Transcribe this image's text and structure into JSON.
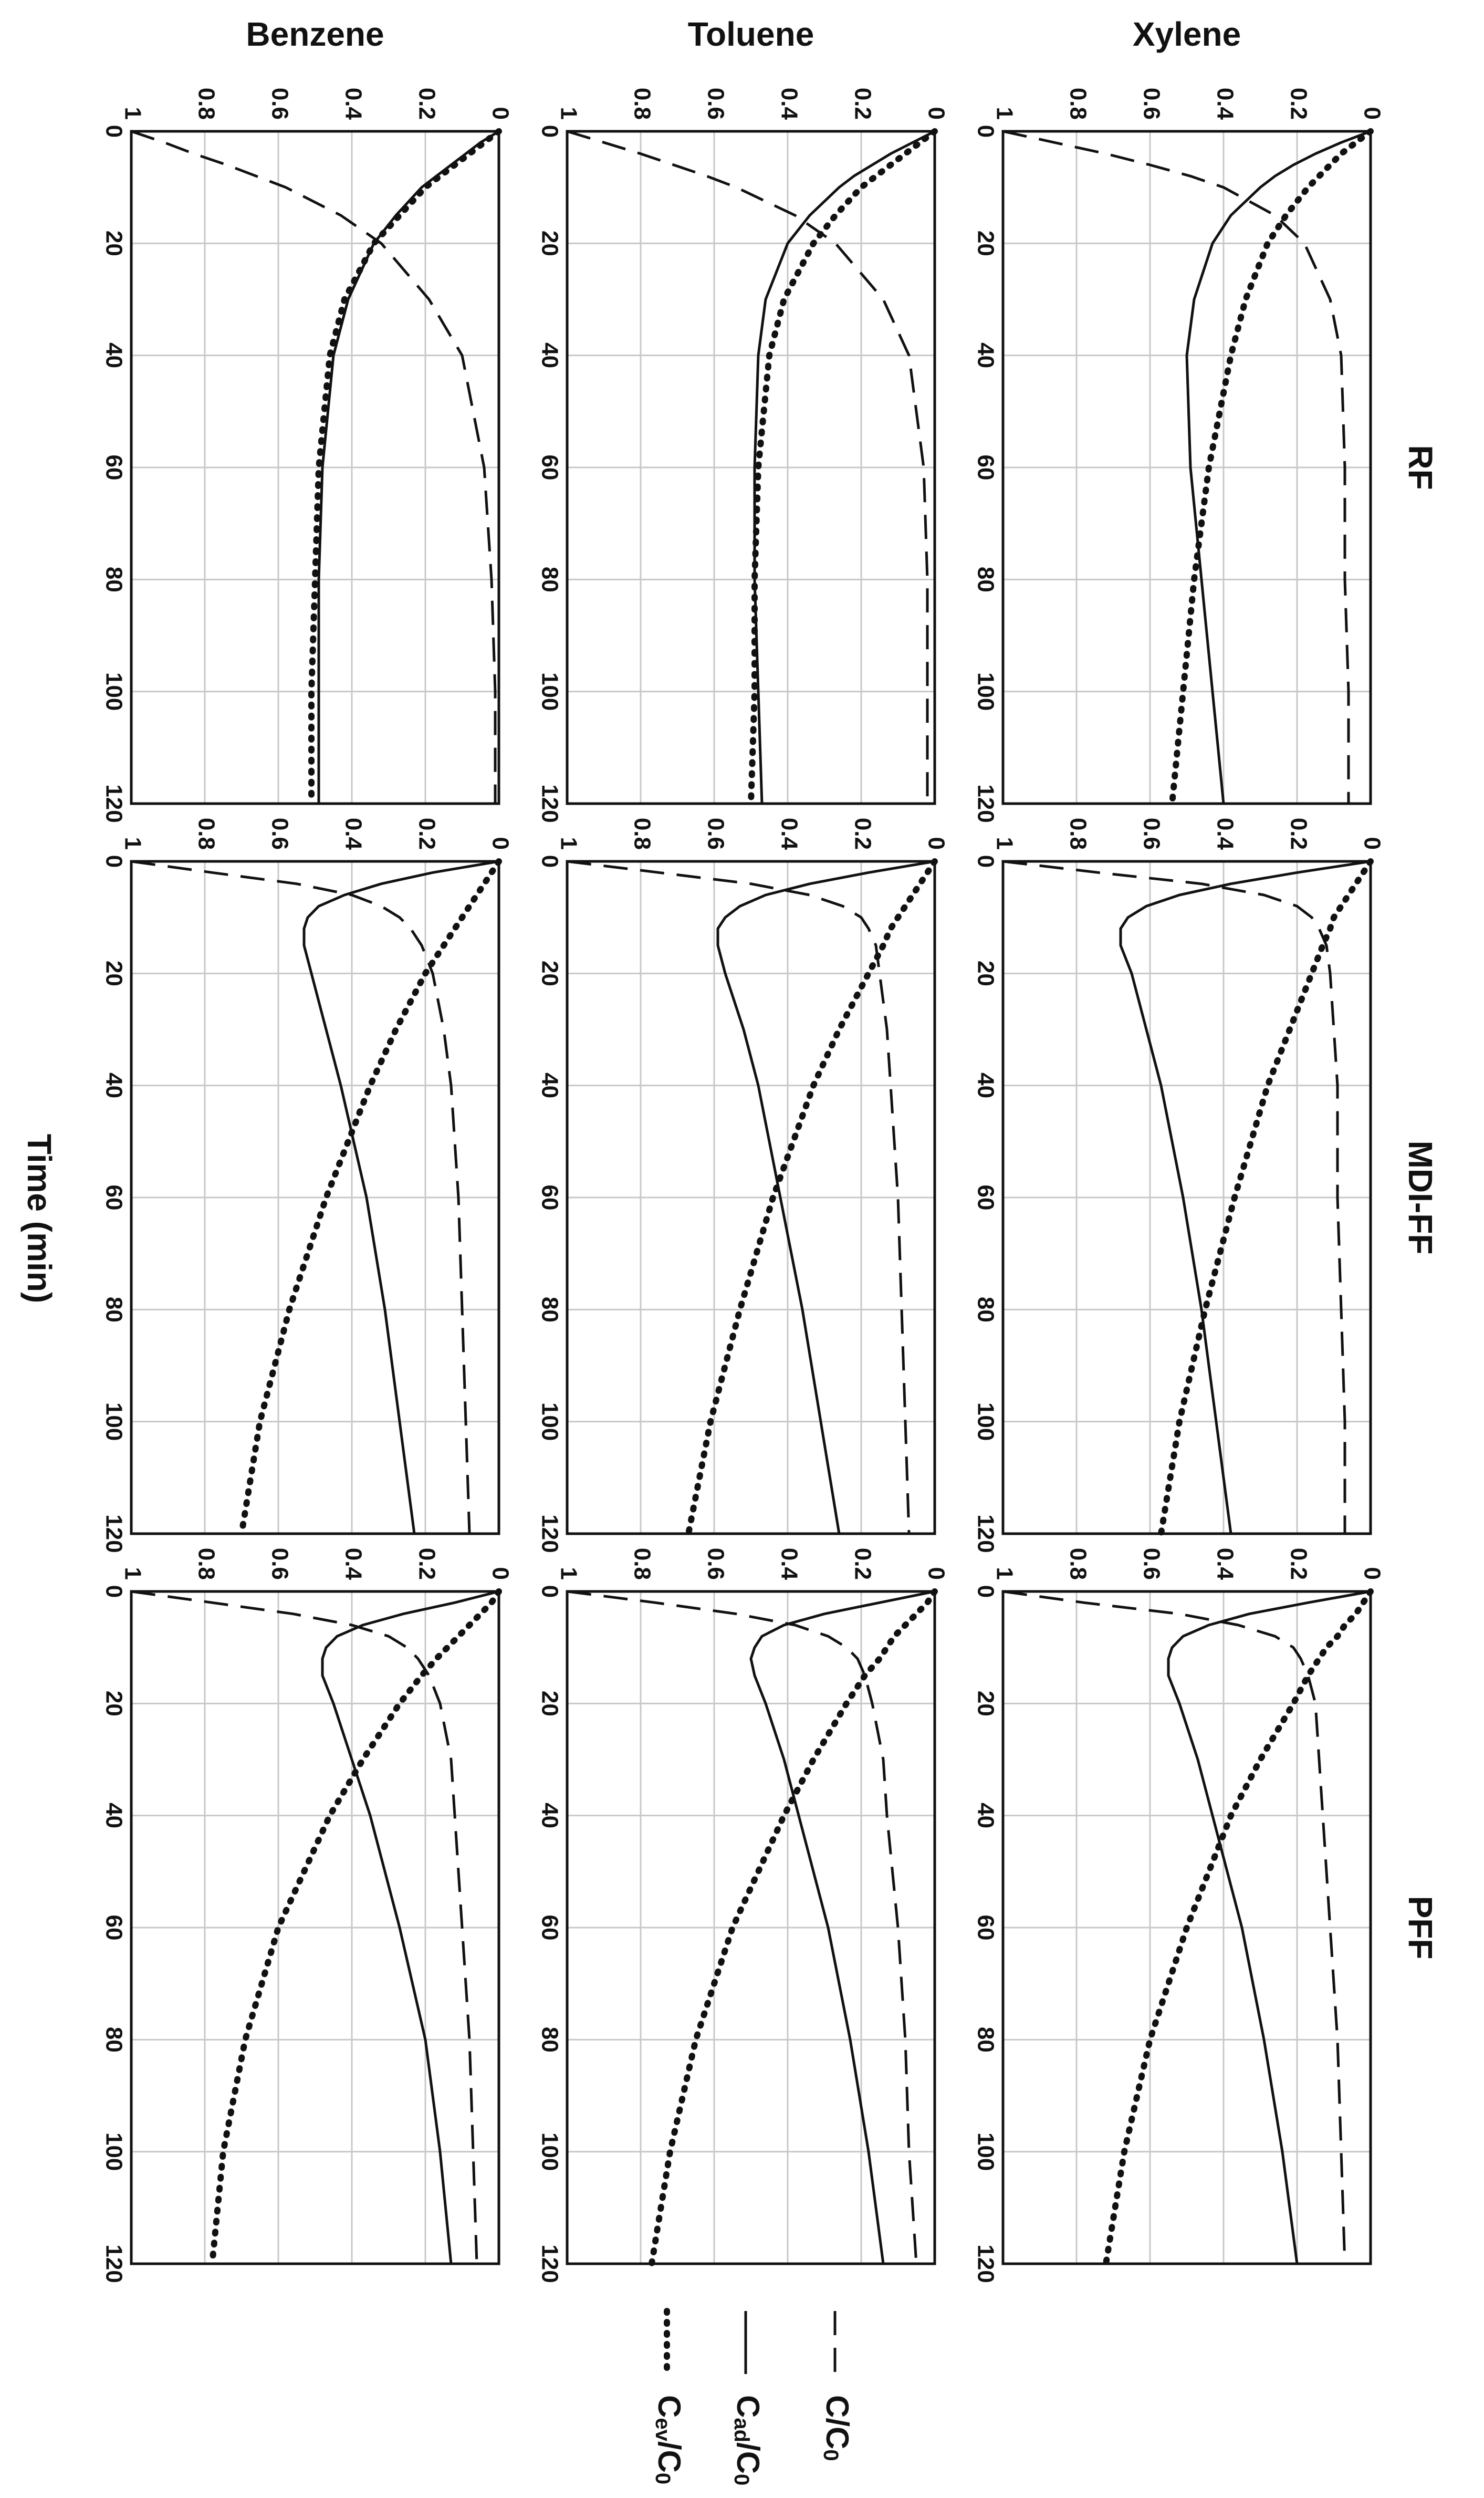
{
  "figure": {
    "xlabel": "Time (min)",
    "row_titles": [
      "Benzene",
      "Toluene",
      "Xylene"
    ],
    "col_titles": [
      "RF",
      "MDI-FF",
      "PFF"
    ]
  },
  "legend": {
    "items": [
      {
        "key": "c",
        "label_main": "C/C",
        "label_sub": "0",
        "style": "dashed"
      },
      {
        "key": "cad",
        "label_main": "C",
        "label_mid": "ad",
        "label_tail": "/C",
        "label_sub": "0",
        "style": "solid"
      },
      {
        "key": "cev",
        "label_main": "C",
        "label_mid": "ev",
        "label_tail": "/C",
        "label_sub": "0",
        "style": "dotted"
      }
    ]
  },
  "chart_data": [
    {
      "type": "line",
      "row": "Benzene",
      "col": "RF",
      "xlim": [
        0,
        120
      ],
      "ylim": [
        0,
        1
      ],
      "x_ticks": [
        "0",
        "20",
        "40",
        "60",
        "80",
        "100",
        "120"
      ],
      "y_ticks": [
        "0",
        "0.2",
        "0.4",
        "0.6",
        "0.8",
        "1"
      ],
      "x": [
        0,
        2,
        4,
        6,
        8,
        10,
        15,
        20,
        30,
        40,
        60,
        80,
        100,
        120
      ],
      "series": [
        {
          "name": "C/C0",
          "values": [
            1,
            0.91,
            0.83,
            0.74,
            0.66,
            0.58,
            0.43,
            0.32,
            0.19,
            0.1,
            0.04,
            0.02,
            0.01,
            0.01
          ]
        },
        {
          "name": "Cad/C0",
          "values": [
            0,
            0.05,
            0.09,
            0.13,
            0.17,
            0.21,
            0.28,
            0.34,
            0.41,
            0.45,
            0.48,
            0.49,
            0.49,
            0.49
          ]
        },
        {
          "name": "Cev/C0",
          "values": [
            0,
            0.04,
            0.08,
            0.12,
            0.16,
            0.2,
            0.27,
            0.34,
            0.42,
            0.46,
            0.49,
            0.5,
            0.51,
            0.51
          ]
        }
      ]
    },
    {
      "type": "line",
      "row": "Benzene",
      "col": "MDI-FF",
      "xlim": [
        0,
        120
      ],
      "ylim": [
        0,
        1
      ],
      "x_ticks": [
        "0",
        "20",
        "40",
        "60",
        "80",
        "100",
        "120"
      ],
      "y_ticks": [
        "0",
        "0.2",
        "0.4",
        "0.6",
        "0.8",
        "1"
      ],
      "x": [
        0,
        2,
        4,
        6,
        8,
        10,
        12,
        15,
        20,
        30,
        40,
        60,
        80,
        100,
        120
      ],
      "series": [
        {
          "name": "C/C0",
          "values": [
            1,
            0.78,
            0.55,
            0.4,
            0.32,
            0.27,
            0.24,
            0.21,
            0.18,
            0.15,
            0.13,
            0.11,
            0.1,
            0.09,
            0.08
          ]
        },
        {
          "name": "Cad/C0",
          "values": [
            0,
            0.18,
            0.32,
            0.42,
            0.49,
            0.52,
            0.53,
            0.53,
            0.51,
            0.47,
            0.43,
            0.36,
            0.31,
            0.27,
            0.23
          ]
        },
        {
          "name": "Cev/C0",
          "values": [
            0,
            0.02,
            0.04,
            0.06,
            0.08,
            0.1,
            0.12,
            0.15,
            0.2,
            0.28,
            0.35,
            0.47,
            0.57,
            0.65,
            0.7
          ]
        }
      ]
    },
    {
      "type": "line",
      "row": "Benzene",
      "col": "PFF",
      "xlim": [
        0,
        120
      ],
      "ylim": [
        0,
        1
      ],
      "x_ticks": [
        "0",
        "20",
        "40",
        "60",
        "80",
        "100",
        "120"
      ],
      "y_ticks": [
        "0",
        "0.2",
        "0.4",
        "0.6",
        "0.8",
        "1"
      ],
      "x": [
        0,
        2,
        4,
        6,
        8,
        10,
        12,
        15,
        20,
        30,
        40,
        60,
        80,
        100,
        120
      ],
      "series": [
        {
          "name": "C/C0",
          "values": [
            1,
            0.78,
            0.56,
            0.4,
            0.3,
            0.25,
            0.22,
            0.19,
            0.16,
            0.13,
            0.12,
            0.1,
            0.08,
            0.07,
            0.06
          ]
        },
        {
          "name": "Cad/C0",
          "values": [
            0,
            0.12,
            0.26,
            0.37,
            0.44,
            0.47,
            0.48,
            0.48,
            0.45,
            0.4,
            0.35,
            0.27,
            0.2,
            0.16,
            0.13
          ]
        },
        {
          "name": "Cev/C0",
          "values": [
            0,
            0.02,
            0.05,
            0.08,
            0.11,
            0.14,
            0.17,
            0.21,
            0.27,
            0.37,
            0.46,
            0.6,
            0.69,
            0.75,
            0.78
          ]
        }
      ]
    },
    {
      "type": "line",
      "row": "Toluene",
      "col": "RF",
      "xlim": [
        0,
        120
      ],
      "ylim": [
        0,
        1
      ],
      "x_ticks": [
        "0",
        "20",
        "40",
        "60",
        "80",
        "100",
        "120"
      ],
      "y_ticks": [
        "0",
        "0.2",
        "0.4",
        "0.6",
        "0.8",
        "1"
      ],
      "x": [
        0,
        2,
        4,
        6,
        8,
        10,
        15,
        20,
        30,
        40,
        60,
        80,
        100,
        120
      ],
      "series": [
        {
          "name": "C/C0",
          "values": [
            1,
            0.9,
            0.8,
            0.71,
            0.62,
            0.54,
            0.38,
            0.27,
            0.14,
            0.07,
            0.03,
            0.02,
            0.02,
            0.02
          ]
        },
        {
          "name": "Cad/C0",
          "values": [
            0,
            0.06,
            0.12,
            0.17,
            0.22,
            0.26,
            0.34,
            0.4,
            0.46,
            0.48,
            0.49,
            0.49,
            0.48,
            0.47
          ]
        },
        {
          "name": "Cev/C0",
          "values": [
            0,
            0.04,
            0.08,
            0.12,
            0.16,
            0.2,
            0.27,
            0.33,
            0.41,
            0.45,
            0.48,
            0.49,
            0.49,
            0.5
          ]
        }
      ]
    },
    {
      "type": "line",
      "row": "Toluene",
      "col": "MDI-FF",
      "xlim": [
        0,
        120
      ],
      "ylim": [
        0,
        1
      ],
      "x_ticks": [
        "0",
        "20",
        "40",
        "60",
        "80",
        "100",
        "120"
      ],
      "y_ticks": [
        "0",
        "0.2",
        "0.4",
        "0.6",
        "0.8",
        "1"
      ],
      "x": [
        0,
        2,
        4,
        6,
        8,
        10,
        12,
        15,
        20,
        30,
        40,
        60,
        80,
        100,
        120
      ],
      "series": [
        {
          "name": "C/C0",
          "values": [
            1,
            0.75,
            0.5,
            0.34,
            0.25,
            0.2,
            0.18,
            0.16,
            0.15,
            0.13,
            0.12,
            0.1,
            0.09,
            0.08,
            0.07
          ]
        },
        {
          "name": "Cad/C0",
          "values": [
            0,
            0.18,
            0.34,
            0.46,
            0.53,
            0.57,
            0.59,
            0.59,
            0.57,
            0.52,
            0.48,
            0.42,
            0.36,
            0.31,
            0.26
          ]
        },
        {
          "name": "Cev/C0",
          "values": [
            0,
            0.02,
            0.04,
            0.06,
            0.08,
            0.1,
            0.12,
            0.14,
            0.18,
            0.26,
            0.33,
            0.44,
            0.53,
            0.61,
            0.67
          ]
        }
      ]
    },
    {
      "type": "line",
      "row": "Toluene",
      "col": "PFF",
      "xlim": [
        0,
        120
      ],
      "ylim": [
        0,
        1
      ],
      "x_ticks": [
        "0",
        "20",
        "40",
        "60",
        "80",
        "100",
        "120"
      ],
      "y_ticks": [
        "0",
        "0.2",
        "0.4",
        "0.6",
        "0.8",
        "1"
      ],
      "x": [
        0,
        2,
        4,
        6,
        8,
        10,
        12,
        15,
        20,
        30,
        40,
        60,
        80,
        100,
        120
      ],
      "series": [
        {
          "name": "C/C0",
          "values": [
            1,
            0.76,
            0.54,
            0.38,
            0.29,
            0.24,
            0.21,
            0.19,
            0.17,
            0.14,
            0.13,
            0.1,
            0.08,
            0.07,
            0.05
          ]
        },
        {
          "name": "Cad/C0",
          "values": [
            0,
            0.15,
            0.3,
            0.41,
            0.47,
            0.49,
            0.5,
            0.49,
            0.46,
            0.41,
            0.37,
            0.29,
            0.23,
            0.18,
            0.14
          ]
        },
        {
          "name": "Cev/C0",
          "values": [
            0,
            0.02,
            0.05,
            0.08,
            0.11,
            0.13,
            0.15,
            0.19,
            0.24,
            0.33,
            0.41,
            0.55,
            0.65,
            0.72,
            0.77
          ]
        }
      ]
    },
    {
      "type": "line",
      "row": "Xylene",
      "col": "RF",
      "xlim": [
        0,
        120
      ],
      "ylim": [
        0,
        1
      ],
      "x_ticks": [
        "0",
        "20",
        "40",
        "60",
        "80",
        "100",
        "120"
      ],
      "y_ticks": [
        "0",
        "0.2",
        "0.4",
        "0.6",
        "0.8",
        "1"
      ],
      "x": [
        0,
        2,
        4,
        6,
        8,
        10,
        15,
        20,
        30,
        40,
        60,
        80,
        100,
        120
      ],
      "series": [
        {
          "name": "C/C0",
          "values": [
            1,
            0.86,
            0.72,
            0.6,
            0.49,
            0.4,
            0.26,
            0.18,
            0.11,
            0.08,
            0.07,
            0.07,
            0.06,
            0.06
          ]
        },
        {
          "name": "Cad/C0",
          "values": [
            0,
            0.08,
            0.15,
            0.21,
            0.26,
            0.3,
            0.38,
            0.43,
            0.48,
            0.5,
            0.49,
            0.46,
            0.43,
            0.4
          ]
        },
        {
          "name": "Cev/C0",
          "values": [
            0,
            0.04,
            0.08,
            0.11,
            0.14,
            0.17,
            0.23,
            0.28,
            0.34,
            0.38,
            0.44,
            0.48,
            0.51,
            0.54
          ]
        }
      ]
    },
    {
      "type": "line",
      "row": "Xylene",
      "col": "MDI-FF",
      "xlim": [
        0,
        120
      ],
      "ylim": [
        0,
        1
      ],
      "x_ticks": [
        "0",
        "20",
        "40",
        "60",
        "80",
        "100",
        "120"
      ],
      "y_ticks": [
        "0",
        "0.2",
        "0.4",
        "0.6",
        "0.8",
        "1"
      ],
      "x": [
        0,
        2,
        4,
        6,
        8,
        10,
        12,
        15,
        20,
        30,
        40,
        60,
        80,
        100,
        120
      ],
      "series": [
        {
          "name": "C/C0",
          "values": [
            1,
            0.74,
            0.46,
            0.29,
            0.2,
            0.16,
            0.14,
            0.12,
            0.11,
            0.1,
            0.09,
            0.09,
            0.08,
            0.07,
            0.07
          ]
        },
        {
          "name": "Cad/C0",
          "values": [
            0,
            0.2,
            0.38,
            0.52,
            0.61,
            0.66,
            0.68,
            0.68,
            0.65,
            0.61,
            0.57,
            0.51,
            0.46,
            0.42,
            0.38
          ]
        },
        {
          "name": "Cev/C0",
          "values": [
            0,
            0.02,
            0.04,
            0.06,
            0.08,
            0.1,
            0.11,
            0.13,
            0.16,
            0.22,
            0.28,
            0.37,
            0.45,
            0.52,
            0.57
          ]
        }
      ]
    },
    {
      "type": "line",
      "row": "Xylene",
      "col": "PFF",
      "xlim": [
        0,
        120
      ],
      "ylim": [
        0,
        1
      ],
      "x_ticks": [
        "0",
        "20",
        "40",
        "60",
        "80",
        "100",
        "120"
      ],
      "y_ticks": [
        "0",
        "0.2",
        "0.4",
        "0.6",
        "0.8",
        "1"
      ],
      "x": [
        0,
        2,
        4,
        6,
        8,
        10,
        12,
        15,
        20,
        30,
        40,
        60,
        80,
        100,
        120
      ],
      "series": [
        {
          "name": "C/C0",
          "values": [
            1,
            0.78,
            0.52,
            0.36,
            0.26,
            0.21,
            0.19,
            0.17,
            0.15,
            0.14,
            0.13,
            0.11,
            0.09,
            0.08,
            0.07
          ]
        },
        {
          "name": "Cad/C0",
          "values": [
            0,
            0.17,
            0.33,
            0.44,
            0.51,
            0.54,
            0.55,
            0.55,
            0.52,
            0.47,
            0.43,
            0.35,
            0.29,
            0.24,
            0.2
          ]
        },
        {
          "name": "Cev/C0",
          "values": [
            0,
            0.02,
            0.04,
            0.07,
            0.09,
            0.12,
            0.14,
            0.17,
            0.21,
            0.3,
            0.38,
            0.5,
            0.6,
            0.67,
            0.72
          ]
        }
      ]
    }
  ]
}
